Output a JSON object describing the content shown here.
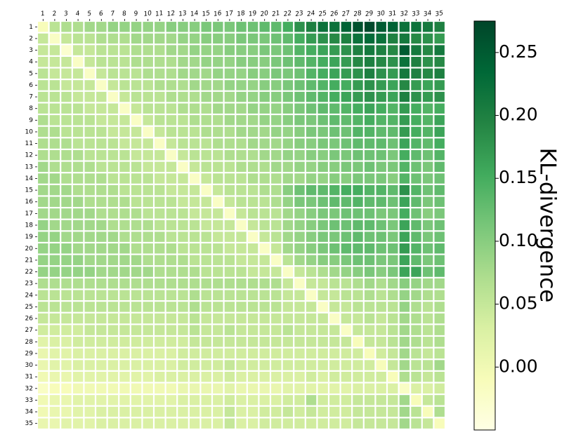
{
  "chart_data": {
    "type": "heatmap",
    "title": "",
    "xlabel": "",
    "ylabel": "",
    "x_categories": [
      "1",
      "2",
      "3",
      "4",
      "5",
      "6",
      "7",
      "8",
      "9",
      "10",
      "11",
      "12",
      "13",
      "14",
      "15",
      "16",
      "17",
      "18",
      "19",
      "20",
      "21",
      "22",
      "23",
      "24",
      "25",
      "26",
      "27",
      "28",
      "29",
      "30",
      "31",
      "32",
      "33",
      "34",
      "35"
    ],
    "y_categories": [
      "1",
      "2",
      "3",
      "4",
      "5",
      "6",
      "7",
      "8",
      "9",
      "10",
      "11",
      "12",
      "13",
      "14",
      "15",
      "16",
      "17",
      "18",
      "19",
      "20",
      "21",
      "22",
      "23",
      "24",
      "25",
      "26",
      "27",
      "28",
      "29",
      "30",
      "31",
      "32",
      "33",
      "34",
      "35"
    ],
    "values": [
      [
        -0.01,
        0.06,
        0.07,
        0.07,
        0.08,
        0.08,
        0.09,
        0.09,
        0.09,
        0.09,
        0.09,
        0.1,
        0.1,
        0.1,
        0.11,
        0.11,
        0.11,
        0.12,
        0.12,
        0.13,
        0.13,
        0.15,
        0.18,
        0.2,
        0.22,
        0.22,
        0.24,
        0.26,
        0.27,
        0.25,
        0.24,
        0.22,
        0.22,
        0.21,
        0.2
      ],
      [
        0.05,
        -0.02,
        0.05,
        0.06,
        0.06,
        0.07,
        0.07,
        0.07,
        0.08,
        0.08,
        0.08,
        0.08,
        0.09,
        0.09,
        0.1,
        0.1,
        0.1,
        0.11,
        0.11,
        0.11,
        0.12,
        0.13,
        0.15,
        0.17,
        0.18,
        0.19,
        0.2,
        0.22,
        0.23,
        0.22,
        0.2,
        0.21,
        0.19,
        0.18,
        0.17
      ],
      [
        0.05,
        0.05,
        -0.03,
        0.05,
        0.05,
        0.06,
        0.06,
        0.06,
        0.07,
        0.07,
        0.07,
        0.08,
        0.08,
        0.09,
        0.09,
        0.09,
        0.1,
        0.1,
        0.1,
        0.11,
        0.11,
        0.12,
        0.14,
        0.15,
        0.16,
        0.17,
        0.18,
        0.2,
        0.21,
        0.2,
        0.19,
        0.25,
        0.21,
        0.19,
        0.21
      ],
      [
        0.05,
        0.05,
        0.05,
        -0.02,
        0.05,
        0.06,
        0.06,
        0.06,
        0.07,
        0.07,
        0.07,
        0.07,
        0.08,
        0.08,
        0.09,
        0.09,
        0.09,
        0.1,
        0.1,
        0.1,
        0.11,
        0.12,
        0.13,
        0.14,
        0.15,
        0.16,
        0.17,
        0.19,
        0.2,
        0.19,
        0.18,
        0.22,
        0.2,
        0.18,
        0.19
      ],
      [
        0.06,
        0.05,
        0.05,
        0.05,
        -0.02,
        0.05,
        0.06,
        0.06,
        0.06,
        0.07,
        0.07,
        0.07,
        0.08,
        0.08,
        0.08,
        0.09,
        0.09,
        0.09,
        0.1,
        0.1,
        0.11,
        0.11,
        0.12,
        0.14,
        0.15,
        0.16,
        0.17,
        0.18,
        0.2,
        0.18,
        0.17,
        0.21,
        0.2,
        0.19,
        0.2
      ],
      [
        0.06,
        0.06,
        0.05,
        0.05,
        0.05,
        -0.02,
        0.05,
        0.06,
        0.06,
        0.06,
        0.07,
        0.07,
        0.07,
        0.08,
        0.08,
        0.08,
        0.09,
        0.09,
        0.09,
        0.1,
        0.1,
        0.11,
        0.12,
        0.13,
        0.14,
        0.15,
        0.15,
        0.17,
        0.18,
        0.17,
        0.16,
        0.19,
        0.17,
        0.16,
        0.17
      ],
      [
        0.06,
        0.06,
        0.06,
        0.05,
        0.05,
        0.05,
        -0.02,
        0.05,
        0.06,
        0.06,
        0.06,
        0.07,
        0.07,
        0.07,
        0.08,
        0.08,
        0.08,
        0.09,
        0.09,
        0.1,
        0.1,
        0.11,
        0.12,
        0.13,
        0.14,
        0.15,
        0.16,
        0.17,
        0.18,
        0.17,
        0.16,
        0.2,
        0.18,
        0.17,
        0.18
      ],
      [
        0.06,
        0.06,
        0.06,
        0.06,
        0.05,
        0.05,
        0.05,
        -0.02,
        0.05,
        0.06,
        0.06,
        0.06,
        0.07,
        0.07,
        0.07,
        0.08,
        0.08,
        0.08,
        0.09,
        0.09,
        0.09,
        0.1,
        0.11,
        0.12,
        0.13,
        0.13,
        0.14,
        0.15,
        0.16,
        0.15,
        0.14,
        0.17,
        0.15,
        0.14,
        0.15
      ],
      [
        0.07,
        0.06,
        0.06,
        0.06,
        0.06,
        0.05,
        0.05,
        0.05,
        -0.02,
        0.05,
        0.06,
        0.06,
        0.06,
        0.07,
        0.07,
        0.07,
        0.08,
        0.08,
        0.08,
        0.09,
        0.09,
        0.1,
        0.11,
        0.11,
        0.12,
        0.13,
        0.13,
        0.14,
        0.15,
        0.14,
        0.14,
        0.17,
        0.15,
        0.14,
        0.16
      ],
      [
        0.07,
        0.07,
        0.06,
        0.06,
        0.06,
        0.06,
        0.05,
        0.05,
        0.05,
        -0.02,
        0.05,
        0.06,
        0.06,
        0.06,
        0.07,
        0.07,
        0.07,
        0.08,
        0.08,
        0.08,
        0.09,
        0.09,
        0.1,
        0.11,
        0.11,
        0.12,
        0.12,
        0.14,
        0.14,
        0.13,
        0.13,
        0.17,
        0.15,
        0.14,
        0.16
      ],
      [
        0.07,
        0.07,
        0.07,
        0.06,
        0.06,
        0.06,
        0.06,
        0.05,
        0.05,
        0.05,
        -0.02,
        0.05,
        0.06,
        0.06,
        0.06,
        0.07,
        0.07,
        0.07,
        0.08,
        0.08,
        0.08,
        0.09,
        0.1,
        0.1,
        0.11,
        0.11,
        0.12,
        0.13,
        0.13,
        0.13,
        0.12,
        0.16,
        0.14,
        0.13,
        0.15
      ],
      [
        0.07,
        0.07,
        0.07,
        0.07,
        0.06,
        0.06,
        0.06,
        0.06,
        0.05,
        0.05,
        0.05,
        -0.02,
        0.05,
        0.06,
        0.06,
        0.06,
        0.07,
        0.07,
        0.07,
        0.08,
        0.08,
        0.09,
        0.09,
        0.1,
        0.1,
        0.11,
        0.11,
        0.12,
        0.12,
        0.12,
        0.11,
        0.15,
        0.13,
        0.12,
        0.14
      ],
      [
        0.08,
        0.07,
        0.07,
        0.07,
        0.07,
        0.06,
        0.06,
        0.06,
        0.06,
        0.05,
        0.05,
        0.05,
        -0.02,
        0.05,
        0.06,
        0.06,
        0.06,
        0.07,
        0.07,
        0.07,
        0.08,
        0.08,
        0.09,
        0.09,
        0.1,
        0.1,
        0.11,
        0.11,
        0.12,
        0.11,
        0.11,
        0.14,
        0.12,
        0.11,
        0.13
      ],
      [
        0.08,
        0.08,
        0.07,
        0.07,
        0.07,
        0.07,
        0.06,
        0.06,
        0.06,
        0.06,
        0.05,
        0.05,
        0.05,
        -0.02,
        0.05,
        0.06,
        0.06,
        0.06,
        0.07,
        0.07,
        0.07,
        0.08,
        0.08,
        0.09,
        0.09,
        0.1,
        0.1,
        0.11,
        0.11,
        0.11,
        0.1,
        0.14,
        0.12,
        0.11,
        0.12
      ],
      [
        0.08,
        0.08,
        0.08,
        0.07,
        0.07,
        0.07,
        0.07,
        0.06,
        0.06,
        0.06,
        0.06,
        0.05,
        0.05,
        0.05,
        -0.02,
        0.05,
        0.06,
        0.06,
        0.06,
        0.07,
        0.07,
        0.1,
        0.12,
        0.13,
        0.13,
        0.14,
        0.15,
        0.15,
        0.14,
        0.14,
        0.13,
        0.18,
        0.14,
        0.12,
        0.13
      ],
      [
        0.08,
        0.08,
        0.08,
        0.08,
        0.07,
        0.07,
        0.07,
        0.07,
        0.06,
        0.06,
        0.06,
        0.06,
        0.05,
        0.05,
        0.05,
        -0.02,
        0.05,
        0.06,
        0.06,
        0.06,
        0.07,
        0.09,
        0.11,
        0.11,
        0.12,
        0.13,
        0.13,
        0.14,
        0.13,
        0.13,
        0.12,
        0.16,
        0.13,
        0.11,
        0.12
      ],
      [
        0.08,
        0.08,
        0.08,
        0.08,
        0.08,
        0.07,
        0.07,
        0.07,
        0.07,
        0.06,
        0.06,
        0.06,
        0.06,
        0.05,
        0.05,
        0.05,
        -0.02,
        0.05,
        0.06,
        0.06,
        0.06,
        0.08,
        0.09,
        0.1,
        0.11,
        0.11,
        0.12,
        0.12,
        0.12,
        0.11,
        0.11,
        0.15,
        0.12,
        0.1,
        0.11
      ],
      [
        0.09,
        0.08,
        0.08,
        0.08,
        0.08,
        0.08,
        0.07,
        0.07,
        0.07,
        0.07,
        0.06,
        0.06,
        0.06,
        0.06,
        0.05,
        0.05,
        0.05,
        -0.02,
        0.05,
        0.06,
        0.06,
        0.08,
        0.09,
        0.1,
        0.11,
        0.12,
        0.12,
        0.13,
        0.13,
        0.12,
        0.11,
        0.16,
        0.13,
        0.11,
        0.12
      ],
      [
        0.09,
        0.09,
        0.08,
        0.08,
        0.08,
        0.08,
        0.08,
        0.07,
        0.07,
        0.07,
        0.07,
        0.06,
        0.06,
        0.06,
        0.06,
        0.05,
        0.05,
        0.05,
        -0.02,
        0.05,
        0.06,
        0.08,
        0.09,
        0.1,
        0.11,
        0.11,
        0.12,
        0.13,
        0.12,
        0.12,
        0.11,
        0.16,
        0.13,
        0.11,
        0.12
      ],
      [
        0.09,
        0.09,
        0.09,
        0.08,
        0.08,
        0.08,
        0.08,
        0.08,
        0.07,
        0.07,
        0.07,
        0.07,
        0.06,
        0.06,
        0.06,
        0.06,
        0.05,
        0.05,
        0.05,
        -0.02,
        0.05,
        0.08,
        0.09,
        0.1,
        0.11,
        0.12,
        0.13,
        0.13,
        0.13,
        0.12,
        0.12,
        0.17,
        0.14,
        0.12,
        0.13
      ],
      [
        0.09,
        0.09,
        0.09,
        0.09,
        0.08,
        0.08,
        0.08,
        0.08,
        0.08,
        0.07,
        0.07,
        0.07,
        0.07,
        0.06,
        0.06,
        0.06,
        0.06,
        0.05,
        0.05,
        0.05,
        -0.02,
        0.06,
        0.08,
        0.09,
        0.1,
        0.1,
        0.11,
        0.12,
        0.12,
        0.11,
        0.11,
        0.16,
        0.13,
        0.11,
        0.12
      ],
      [
        0.09,
        0.09,
        0.09,
        0.09,
        0.09,
        0.08,
        0.08,
        0.08,
        0.08,
        0.08,
        0.07,
        0.07,
        0.07,
        0.07,
        0.06,
        0.06,
        0.06,
        0.06,
        0.05,
        0.05,
        0.05,
        -0.02,
        0.05,
        0.06,
        0.07,
        0.08,
        0.09,
        0.1,
        0.11,
        0.1,
        0.11,
        0.16,
        0.16,
        0.12,
        0.13
      ],
      [
        0.07,
        0.07,
        0.07,
        0.07,
        0.07,
        0.07,
        0.07,
        0.07,
        0.07,
        0.07,
        0.07,
        0.07,
        0.07,
        0.07,
        0.07,
        0.07,
        0.07,
        0.07,
        0.07,
        0.07,
        0.07,
        0.05,
        -0.02,
        0.05,
        0.05,
        0.06,
        0.06,
        0.07,
        0.08,
        0.07,
        0.08,
        0.1,
        0.09,
        0.08,
        0.08
      ],
      [
        0.06,
        0.06,
        0.06,
        0.06,
        0.06,
        0.06,
        0.06,
        0.06,
        0.06,
        0.06,
        0.06,
        0.06,
        0.06,
        0.07,
        0.06,
        0.06,
        0.06,
        0.06,
        0.06,
        0.06,
        0.06,
        0.05,
        0.05,
        -0.02,
        0.05,
        0.05,
        0.06,
        0.06,
        0.07,
        0.06,
        0.07,
        0.09,
        0.08,
        0.07,
        0.07
      ],
      [
        0.06,
        0.06,
        0.06,
        0.06,
        0.06,
        0.06,
        0.06,
        0.06,
        0.06,
        0.06,
        0.06,
        0.06,
        0.06,
        0.07,
        0.06,
        0.06,
        0.06,
        0.06,
        0.06,
        0.06,
        0.06,
        0.05,
        0.05,
        0.05,
        -0.02,
        0.05,
        0.05,
        0.06,
        0.06,
        0.06,
        0.06,
        0.09,
        0.07,
        0.06,
        0.07
      ],
      [
        0.05,
        0.05,
        0.05,
        0.05,
        0.05,
        0.05,
        0.05,
        0.05,
        0.05,
        0.05,
        0.05,
        0.05,
        0.05,
        0.06,
        0.05,
        0.05,
        0.05,
        0.05,
        0.05,
        0.05,
        0.05,
        0.05,
        0.05,
        0.05,
        0.05,
        -0.02,
        0.05,
        0.05,
        0.06,
        0.05,
        0.06,
        0.08,
        0.07,
        0.06,
        0.07
      ],
      [
        0.04,
        0.04,
        0.04,
        0.04,
        0.05,
        0.05,
        0.05,
        0.05,
        0.05,
        0.05,
        0.05,
        0.05,
        0.05,
        0.06,
        0.05,
        0.05,
        0.06,
        0.05,
        0.05,
        0.05,
        0.05,
        0.06,
        0.05,
        0.05,
        0.05,
        0.05,
        -0.02,
        0.05,
        0.05,
        0.05,
        0.06,
        0.08,
        0.07,
        0.06,
        0.07
      ],
      [
        0.02,
        0.03,
        0.03,
        0.04,
        0.04,
        0.04,
        0.04,
        0.04,
        0.04,
        0.04,
        0.04,
        0.04,
        0.04,
        0.05,
        0.05,
        0.05,
        0.05,
        0.05,
        0.05,
        0.05,
        0.05,
        0.05,
        0.05,
        0.05,
        0.05,
        0.05,
        0.05,
        -0.01,
        0.05,
        0.05,
        0.06,
        0.08,
        0.07,
        0.06,
        0.07
      ],
      [
        0.01,
        0.02,
        0.02,
        0.03,
        0.03,
        0.03,
        0.03,
        0.03,
        0.03,
        0.03,
        0.03,
        0.03,
        0.04,
        0.04,
        0.04,
        0.04,
        0.04,
        0.04,
        0.04,
        0.04,
        0.04,
        0.04,
        0.04,
        0.04,
        0.04,
        0.04,
        0.04,
        0.04,
        -0.01,
        0.04,
        0.05,
        0.08,
        0.06,
        0.05,
        0.06
      ],
      [
        0.01,
        0.02,
        0.02,
        0.03,
        0.03,
        0.03,
        0.03,
        0.03,
        0.03,
        0.03,
        0.03,
        0.03,
        0.04,
        0.04,
        0.04,
        0.04,
        0.05,
        0.04,
        0.04,
        0.04,
        0.04,
        0.04,
        0.04,
        0.04,
        0.04,
        0.04,
        0.04,
        0.04,
        0.04,
        -0.01,
        0.05,
        0.08,
        0.06,
        0.06,
        0.08
      ],
      [
        0.0,
        0.01,
        0.01,
        0.02,
        0.02,
        0.02,
        0.02,
        0.02,
        0.02,
        0.02,
        0.03,
        0.03,
        0.03,
        0.03,
        0.03,
        0.03,
        0.04,
        0.03,
        0.03,
        0.03,
        0.03,
        0.03,
        0.03,
        0.04,
        0.03,
        0.04,
        0.04,
        0.04,
        0.04,
        0.04,
        -0.01,
        0.07,
        0.06,
        0.05,
        0.06
      ],
      [
        -0.02,
        -0.01,
        -0.01,
        0.0,
        0.0,
        0.0,
        0.0,
        0.0,
        0.0,
        0.0,
        0.0,
        0.0,
        0.01,
        0.01,
        0.01,
        0.01,
        0.02,
        0.01,
        0.01,
        0.01,
        0.01,
        0.02,
        0.02,
        0.02,
        0.02,
        0.02,
        0.02,
        0.03,
        0.03,
        0.03,
        0.03,
        -0.02,
        0.03,
        0.03,
        0.04
      ],
      [
        0.0,
        0.01,
        0.01,
        0.02,
        0.02,
        0.02,
        0.02,
        0.02,
        0.02,
        0.02,
        0.02,
        0.02,
        0.03,
        0.03,
        0.03,
        0.03,
        0.04,
        0.03,
        0.03,
        0.03,
        0.03,
        0.04,
        0.04,
        0.07,
        0.04,
        0.04,
        0.04,
        0.05,
        0.05,
        0.05,
        0.05,
        0.08,
        -0.01,
        0.05,
        0.06
      ],
      [
        0.0,
        0.01,
        0.01,
        0.02,
        0.02,
        0.03,
        0.03,
        0.03,
        0.03,
        0.03,
        0.03,
        0.03,
        0.03,
        0.03,
        0.03,
        0.03,
        0.05,
        0.03,
        0.03,
        0.04,
        0.04,
        0.05,
        0.04,
        0.05,
        0.04,
        0.04,
        0.04,
        0.05,
        0.05,
        0.05,
        0.05,
        0.08,
        0.06,
        -0.01,
        0.07
      ],
      [
        0.01,
        0.01,
        0.02,
        0.02,
        0.02,
        0.03,
        0.03,
        0.03,
        0.03,
        0.03,
        0.03,
        0.03,
        0.03,
        0.03,
        0.03,
        0.03,
        0.05,
        0.03,
        0.03,
        0.04,
        0.04,
        0.04,
        0.04,
        0.04,
        0.04,
        0.04,
        0.04,
        0.05,
        0.05,
        0.05,
        0.05,
        0.08,
        0.06,
        0.05,
        -0.01
      ]
    ],
    "colorbar": {
      "label": "KL-divergence",
      "ticks": [
        0.0,
        0.05,
        0.1,
        0.15,
        0.2,
        0.25
      ],
      "tick_labels": [
        "0.00",
        "0.05",
        "0.10",
        "0.15",
        "0.20",
        "0.25"
      ],
      "vmin": -0.05,
      "vmax": 0.275,
      "colormap": [
        "#ffffe5",
        "#f7fcb9",
        "#d9f0a3",
        "#addd8e",
        "#78c679",
        "#41ab5d",
        "#238443",
        "#006837",
        "#004529"
      ]
    },
    "grid": false,
    "cell_separator_color": "#ffffff"
  }
}
